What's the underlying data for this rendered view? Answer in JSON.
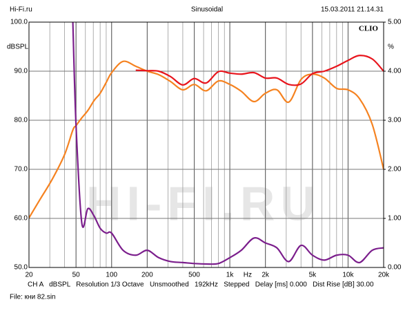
{
  "chart_data": {
    "type": "line",
    "header_left": "Hi-Fi.ru",
    "title": "Sinusoidal",
    "header_right": "15.03.2011 21.14.31",
    "brand": "CLIO",
    "watermark": "HI-FI.RU",
    "y_label": "dBSPL",
    "y2_label": "%",
    "x_unit_label": "Hz",
    "footer": "CH A   dBSPL   Resolution 1/3 Octave   Unsmoothed   192kHz   Stepped   Delay [ms] 0.000   Dist Rise [dB] 30.00",
    "file_label": "File: кни 82.sin",
    "x_scale": "log",
    "grid": true,
    "xlim": [
      20,
      20000
    ],
    "xticks": [
      20,
      50,
      100,
      200,
      500,
      {
        "value": 1000,
        "label": "1k"
      },
      {
        "value": 2000,
        "label": "2k"
      },
      {
        "value": 5000,
        "label": "5k"
      },
      {
        "value": 10000,
        "label": "10k"
      },
      {
        "value": 20000,
        "label": "20k"
      }
    ],
    "ylim": [
      50,
      100
    ],
    "yticks": [
      {
        "value": 50,
        "label": "50.0"
      },
      {
        "value": 60,
        "label": "60.0"
      },
      {
        "value": 70,
        "label": "70.0"
      },
      {
        "value": 80,
        "label": "80.0"
      },
      {
        "value": 90,
        "label": "90.0"
      },
      {
        "value": 100,
        "label": "100.0"
      }
    ],
    "y2lim": [
      0,
      5
    ],
    "y2ticks": [
      {
        "value": 0,
        "label": "0.00"
      },
      {
        "value": 1,
        "label": "1.00"
      },
      {
        "value": 2,
        "label": "2.00"
      },
      {
        "value": 3,
        "label": "3.00"
      },
      {
        "value": 4,
        "label": "4.00"
      },
      {
        "value": 5,
        "label": "5.00"
      }
    ],
    "x": [
      20,
      25,
      31.5,
      40,
      47,
      50,
      56,
      63,
      71,
      80,
      90,
      100,
      125,
      160,
      200,
      250,
      315,
      400,
      500,
      630,
      800,
      1000,
      1250,
      1600,
      2000,
      2500,
      3150,
      4000,
      5000,
      6300,
      8000,
      10000,
      12500,
      16000,
      20000
    ],
    "series": [
      {
        "color": "#f58220",
        "values": [
          60.1,
          64,
          68,
          73,
          78,
          78.9,
          80.5,
          82,
          84,
          85.5,
          87.7,
          89.7,
          92,
          91,
          90,
          89.3,
          87.9,
          86.2,
          87.3,
          86,
          88,
          87.3,
          85.9,
          83.8,
          85.5,
          86.2,
          83.7,
          88.3,
          89.4,
          88.6,
          86.5,
          86.2,
          84.4,
          79.2,
          70
        ]
      },
      {
        "color": "#e8141c",
        "values": [
          null,
          null,
          null,
          null,
          null,
          null,
          null,
          null,
          null,
          null,
          null,
          null,
          null,
          90.2,
          90.1,
          90,
          88.9,
          87.2,
          88.5,
          87.6,
          89.9,
          89.6,
          89.4,
          89.7,
          88.6,
          88.6,
          87.3,
          87.4,
          89.5,
          90,
          91,
          92.2,
          93.2,
          92.5,
          90
        ]
      },
      {
        "color": "#7b1e8c",
        "axis": "y2",
        "values": [
          null,
          null,
          null,
          null,
          5,
          2.9,
          0.9,
          1.2,
          1.05,
          0.8,
          0.7,
          0.7,
          0.35,
          0.25,
          0.35,
          0.2,
          0.12,
          0.1,
          0.08,
          0.07,
          0.08,
          0.2,
          0.35,
          0.6,
          0.5,
          0.4,
          0.12,
          0.45,
          0.25,
          0.15,
          0.25,
          0.25,
          0.1,
          0.35,
          0.4
        ]
      }
    ]
  }
}
